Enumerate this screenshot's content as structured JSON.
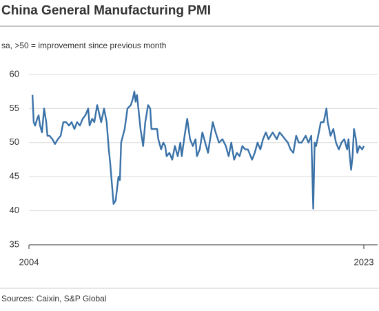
{
  "chart_data": {
    "type": "line",
    "title": "China General Manufacturing PMI",
    "subtitle": "sa, >50 = improvement since previous month",
    "source": "Sources: Caixin, S&P Global",
    "xlim": [
      2004,
      2023
    ],
    "xticks": [
      2004,
      2023
    ],
    "ylim": [
      35,
      60
    ],
    "yticks": [
      35,
      40,
      45,
      50,
      55,
      60
    ],
    "grid": true,
    "series": [
      {
        "color": "#3a72a8",
        "x": [
          2004.2,
          2004.27,
          2004.35,
          2004.47,
          2004.55,
          2004.63,
          2004.74,
          2004.86,
          2004.98,
          2005.05,
          2005.17,
          2005.33,
          2005.48,
          2005.64,
          2005.8,
          2005.95,
          2006.11,
          2006.27,
          2006.42,
          2006.58,
          2006.73,
          2006.89,
          2007.05,
          2007.2,
          2007.36,
          2007.44,
          2007.59,
          2007.71,
          2007.87,
          2008.1,
          2008.26,
          2008.41,
          2008.53,
          2008.61,
          2008.8,
          2008.92,
          2009.08,
          2009.16,
          2009.23,
          2009.43,
          2009.59,
          2009.78,
          2009.9,
          2009.98,
          2010.05,
          2010.13,
          2010.21,
          2010.33,
          2010.48,
          2010.6,
          2010.76,
          2010.88,
          2010.95,
          2011.27,
          2011.34,
          2011.5,
          2011.62,
          2011.73,
          2011.81,
          2011.97,
          2012.13,
          2012.28,
          2012.44,
          2012.59,
          2012.67,
          2012.83,
          2012.98,
          2013.14,
          2013.3,
          2013.45,
          2013.53,
          2013.69,
          2013.84,
          2014.0,
          2014.16,
          2014.31,
          2014.43,
          2014.59,
          2014.78,
          2014.98,
          2015.17,
          2015.33,
          2015.48,
          2015.64,
          2015.8,
          2015.95,
          2016.11,
          2016.27,
          2016.42,
          2016.58,
          2016.66,
          2016.81,
          2016.97,
          2017.13,
          2017.28,
          2017.44,
          2017.59,
          2017.71,
          2017.83,
          2018.06,
          2018.22,
          2018.38,
          2018.53,
          2018.69,
          2018.84,
          2019.0,
          2019.16,
          2019.31,
          2019.47,
          2019.7,
          2019.86,
          2020.02,
          2020.13,
          2020.21,
          2020.29,
          2020.41,
          2020.56,
          2020.72,
          2020.88,
          2020.95,
          2021.11,
          2021.27,
          2021.42,
          2021.58,
          2021.73,
          2021.89,
          2022.05,
          2022.13,
          2022.2,
          2022.28,
          2022.36,
          2022.44,
          2022.55,
          2022.63,
          2022.75,
          2022.91,
          2023.0
        ],
        "values": [
          57,
          53,
          52.5,
          53.5,
          54,
          52.5,
          51.5,
          55,
          53,
          51,
          51,
          50.5,
          49.8,
          50.5,
          51,
          53,
          53,
          52.5,
          53,
          52,
          53,
          52.5,
          53.5,
          54,
          55,
          52.5,
          53.5,
          53,
          55.5,
          53,
          55,
          53,
          49,
          47,
          41,
          41.5,
          45,
          44.5,
          50,
          52,
          55,
          55.5,
          56.5,
          57.5,
          56,
          57,
          55,
          52,
          49.5,
          53,
          55.5,
          55,
          52,
          52,
          50.5,
          49,
          50,
          49.5,
          48,
          48.5,
          47.5,
          49.5,
          48,
          50,
          48,
          51,
          53.5,
          50.5,
          49.5,
          50.5,
          48,
          49,
          51.5,
          50,
          48.5,
          51,
          53,
          51.5,
          50,
          50.5,
          49.5,
          48,
          50,
          47.5,
          48.5,
          48,
          49.5,
          49,
          49,
          48,
          47.5,
          48.5,
          50,
          49,
          50.5,
          51.5,
          50.5,
          51,
          51.5,
          50.5,
          51.5,
          51,
          50.5,
          50,
          49,
          48.5,
          51,
          50,
          50,
          51,
          50,
          51,
          40.3,
          50,
          49.5,
          51,
          53,
          53,
          55,
          53,
          51,
          52,
          50,
          49,
          50,
          50.5,
          49,
          50.5,
          48,
          46,
          48,
          52,
          50.5,
          48.5,
          49.5,
          49,
          49.5
        ]
      }
    ]
  }
}
